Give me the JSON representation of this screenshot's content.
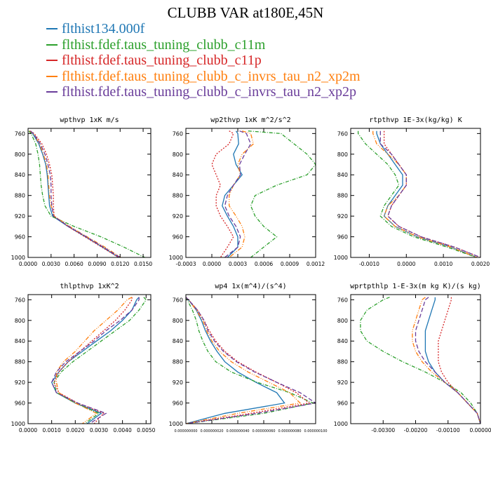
{
  "title": "CLUBB VAR at180E,45N",
  "colors": {
    "s1": "#1f77b4",
    "s2": "#2ca02c",
    "s3": "#d62728",
    "s4": "#ff7f0e",
    "s5": "#6a3d9a"
  },
  "legend": [
    {
      "name": "flthist134.000f",
      "color": "#1f77b4"
    },
    {
      "name": "flthist.fdef.taus_tuning_clubb_c11m",
      "color": "#2ca02c"
    },
    {
      "name": "flthist.fdef.taus_tuning_clubb_c11p",
      "color": "#d62728"
    },
    {
      "name": "flthist.fdef.taus_tuning_clubb_c_invrs_tau_n2_xp2m",
      "color": "#ff7f0e"
    },
    {
      "name": "flthist.fdef.taus_tuning_clubb_c_invrs_tau_n2_xp2p",
      "color": "#6a3d9a"
    }
  ],
  "chart_data": [
    {
      "type": "line",
      "title": "wpthvp  1xK m/s",
      "xlim": [
        0,
        0.016
      ],
      "ylim": [
        1000,
        750
      ],
      "xticks": [
        0.0,
        0.003,
        0.006,
        0.009,
        0.012,
        0.015
      ],
      "xtick_labels": [
        "0.0000",
        "0.0030",
        "0.0060",
        "0.0090",
        "0.0120",
        "0.0150"
      ],
      "yticks": [
        760,
        800,
        840,
        880,
        920,
        960,
        1000
      ],
      "y": [
        755,
        760,
        780,
        800,
        820,
        840,
        860,
        880,
        900,
        920,
        940,
        960,
        980,
        1000
      ],
      "series": [
        {
          "name": "flthist134.000f",
          "values": [
            0.0002,
            0.0006,
            0.0014,
            0.0019,
            0.0023,
            0.0025,
            0.0026,
            0.0027,
            0.0028,
            0.0032,
            0.0052,
            0.0075,
            0.0097,
            0.0118
          ]
        },
        {
          "name": "flthist.fdef.taus_tuning_clubb_c11m",
          "values": [
            0.0001,
            0.0004,
            0.001,
            0.0013,
            0.0015,
            0.0016,
            0.0017,
            0.0019,
            0.0022,
            0.003,
            0.006,
            0.0095,
            0.0125,
            0.0152
          ]
        },
        {
          "name": "flthist.fdef.taus_tuning_clubb_c11p",
          "values": [
            0.0003,
            0.0008,
            0.0018,
            0.0024,
            0.0028,
            0.0031,
            0.0032,
            0.0033,
            0.0033,
            0.0034,
            0.0052,
            0.0074,
            0.0096,
            0.0118
          ]
        },
        {
          "name": "flthist.fdef.taus_tuning_clubb_c_invrs_tau_n2_xp2m",
          "values": [
            0.0002,
            0.0007,
            0.0015,
            0.002,
            0.0024,
            0.0026,
            0.0027,
            0.0028,
            0.003,
            0.0034,
            0.0054,
            0.0077,
            0.01,
            0.0121
          ]
        },
        {
          "name": "flthist.fdef.taus_tuning_clubb_c_invrs_tau_n2_xp2p",
          "values": [
            0.0003,
            0.0007,
            0.0016,
            0.0022,
            0.0026,
            0.0029,
            0.003,
            0.003,
            0.0031,
            0.0033,
            0.0053,
            0.0076,
            0.0098,
            0.012
          ]
        }
      ]
    },
    {
      "type": "line",
      "title": "wp2thvp  1xK m^2/s^2",
      "xlim": [
        -0.0003,
        0.0012
      ],
      "ylim": [
        1000,
        750
      ],
      "xticks": [
        -0.0003,
        0.0,
        0.0003,
        0.0006,
        0.0009,
        0.0012
      ],
      "xtick_labels": [
        "-0.0003",
        "0.0000",
        "0.0003",
        "0.0006",
        "0.0009",
        "0.0012"
      ],
      "yticks": [
        760,
        800,
        840,
        880,
        920,
        960,
        1000
      ],
      "y": [
        755,
        760,
        780,
        800,
        820,
        840,
        860,
        880,
        900,
        920,
        940,
        960,
        980,
        1000
      ],
      "series": [
        {
          "name": "flthist134.000f",
          "values": [
            0.00028,
            0.0003,
            0.00031,
            0.00025,
            0.00028,
            0.00035,
            0.00025,
            0.00015,
            0.00012,
            0.00018,
            0.00025,
            0.0003,
            0.0003,
            0.00018
          ]
        },
        {
          "name": "flthist.fdef.taus_tuning_clubb_c11m",
          "values": [
            0.00042,
            0.0008,
            0.00095,
            0.0011,
            0.0012,
            0.0011,
            0.00075,
            0.0005,
            0.00045,
            0.0005,
            0.0006,
            0.00075,
            0.0006,
            0.00045
          ]
        },
        {
          "name": "flthist.fdef.taus_tuning_clubb_c11p",
          "values": [
            0.0002,
            0.00025,
            0.0002,
            5e-05,
            0.0,
            5e-05,
            0.0001,
            5e-05,
            5e-05,
            0.0001,
            0.00018,
            0.00025,
            0.00018,
            0.0001
          ]
        },
        {
          "name": "flthist.fdef.taus_tuning_clubb_c_invrs_tau_n2_xp2m",
          "values": [
            0.00035,
            0.00045,
            0.00048,
            0.00035,
            0.0003,
            0.00033,
            0.00025,
            0.0002,
            0.0002,
            0.00028,
            0.00035,
            0.00038,
            0.00035,
            0.0002
          ]
        },
        {
          "name": "flthist.fdef.taus_tuning_clubb_c_invrs_tau_n2_xp2p",
          "values": [
            0.00032,
            0.0004,
            0.00045,
            0.00038,
            0.00032,
            0.00033,
            0.00025,
            0.00018,
            0.00015,
            0.0002,
            0.00028,
            0.00033,
            0.0003,
            0.00015
          ]
        }
      ]
    },
    {
      "type": "line",
      "title": "rtpthvp  1E-3x(kg/kg) K",
      "xlim": [
        -0.0015,
        0.002
      ],
      "ylim": [
        1000,
        750
      ],
      "xticks": [
        -0.001,
        0.0,
        0.001,
        0.002
      ],
      "xtick_labels": [
        "-0.0010",
        "0.0000",
        "0.0010",
        "0.0020"
      ],
      "yticks": [
        760,
        800,
        840,
        880,
        920,
        960,
        1000
      ],
      "y": [
        755,
        760,
        780,
        800,
        820,
        840,
        860,
        880,
        900,
        920,
        940,
        960,
        980,
        1000
      ],
      "series": [
        {
          "name": "flthist134.000f",
          "values": [
            -0.0008,
            -0.0008,
            -0.0007,
            -0.0005,
            -0.0003,
            -0.0001,
            -0.0001,
            -0.0003,
            -0.0005,
            -0.0006,
            -0.0003,
            0.0003,
            0.0012,
            0.0019
          ]
        },
        {
          "name": "flthist.fdef.taus_tuning_clubb_c11m",
          "values": [
            -0.0013,
            -0.0013,
            -0.0011,
            -0.0008,
            -0.0005,
            -0.0003,
            -0.0002,
            -0.0004,
            -0.0006,
            -0.0007,
            -0.0004,
            0.0002,
            0.0011,
            0.0019
          ]
        },
        {
          "name": "flthist.fdef.taus_tuning_clubb_c11p",
          "values": [
            -0.0006,
            -0.0006,
            -0.0006,
            -0.0004,
            -0.0002,
            0.0,
            0.0,
            -0.0002,
            -0.0004,
            -0.0005,
            -0.0002,
            0.0004,
            0.0013,
            0.002
          ]
        },
        {
          "name": "flthist.fdef.taus_tuning_clubb_c_invrs_tau_n2_xp2m",
          "values": [
            -0.0009,
            -0.0009,
            -0.0008,
            -0.0005,
            -0.0002,
            0.0,
            0.0,
            -0.0002,
            -0.0005,
            -0.0006,
            -0.0003,
            0.0003,
            0.0012,
            0.0019
          ]
        },
        {
          "name": "flthist.fdef.taus_tuning_clubb_c_invrs_tau_n2_xp2p",
          "values": [
            -0.0007,
            -0.0007,
            -0.0007,
            -0.0004,
            -0.0002,
            0.0,
            0.0,
            -0.0002,
            -0.0004,
            -0.0005,
            -0.0002,
            0.0004,
            0.0013,
            0.002
          ]
        }
      ]
    },
    {
      "type": "line",
      "title": "thlpthvp  1xK^2",
      "xlim": [
        0,
        0.0052
      ],
      "ylim": [
        1000,
        750
      ],
      "xticks": [
        0.0,
        0.001,
        0.002,
        0.003,
        0.004,
        0.005
      ],
      "xtick_labels": [
        "0.0000",
        "0.0010",
        "0.0020",
        "0.0030",
        "0.0040",
        "0.0050"
      ],
      "yticks": [
        760,
        800,
        840,
        880,
        920,
        960,
        1000
      ],
      "y": [
        755,
        760,
        780,
        800,
        820,
        840,
        860,
        880,
        900,
        920,
        940,
        960,
        980,
        1000
      ],
      "series": [
        {
          "name": "flthist134.000f",
          "values": [
            0.0047,
            0.0046,
            0.0044,
            0.004,
            0.0035,
            0.0029,
            0.0023,
            0.0017,
            0.0013,
            0.001,
            0.0012,
            0.002,
            0.0031,
            0.0025
          ]
        },
        {
          "name": "flthist.fdef.taus_tuning_clubb_c11m",
          "values": [
            0.0049,
            0.005,
            0.0047,
            0.0043,
            0.0037,
            0.0031,
            0.0025,
            0.0019,
            0.0014,
            0.0011,
            0.0012,
            0.002,
            0.003,
            0.0024
          ]
        },
        {
          "name": "flthist.fdef.taus_tuning_clubb_c11p",
          "values": [
            0.0044,
            0.0044,
            0.0041,
            0.0037,
            0.0032,
            0.0027,
            0.0022,
            0.0017,
            0.0013,
            0.0011,
            0.0013,
            0.0021,
            0.0032,
            0.0028
          ]
        },
        {
          "name": "flthist.fdef.taus_tuning_clubb_c_invrs_tau_n2_xp2m",
          "values": [
            0.0044,
            0.0042,
            0.0038,
            0.0033,
            0.0028,
            0.0024,
            0.002,
            0.0015,
            0.0012,
            0.0012,
            0.0013,
            0.002,
            0.0029,
            0.0023
          ]
        },
        {
          "name": "flthist.fdef.taus_tuning_clubb_c_invrs_tau_n2_xp2p",
          "values": [
            0.0047,
            0.0047,
            0.0044,
            0.0039,
            0.0033,
            0.0028,
            0.0022,
            0.0016,
            0.0012,
            0.001,
            0.0012,
            0.0021,
            0.0033,
            0.0026
          ]
        }
      ]
    },
    {
      "type": "line",
      "title": "wp4  1x(m^4)/(s^4)",
      "xlim": [
        0,
        1e-07
      ],
      "ylim": [
        1000,
        750
      ],
      "xticks": [
        0.0,
        2e-08,
        4e-08,
        6e-08,
        8e-08,
        1e-07
      ],
      "xtick_labels": [
        "0.000000000",
        "0.000000020",
        "0.000000040",
        "0.000000060",
        "0.000000080",
        "0.000000100"
      ],
      "yticks": [
        760,
        800,
        840,
        880,
        920,
        960,
        1000
      ],
      "y": [
        755,
        760,
        780,
        800,
        820,
        840,
        860,
        880,
        900,
        920,
        940,
        960,
        980,
        1000
      ],
      "series": [
        {
          "name": "flthist134.000f",
          "values": [
            0.0,
            2e-09,
            8e-09,
            1.2e-08,
            1.5e-08,
            1.9e-08,
            2.4e-08,
            3e-08,
            4e-08,
            5.4e-08,
            7e-08,
            7.6e-08,
            3e-08,
            0.0
          ]
        },
        {
          "name": "flthist.fdef.taus_tuning_clubb_c11m",
          "values": [
            0.0,
            1e-09,
            5e-09,
            8e-09,
            1e-08,
            1.3e-08,
            1.7e-08,
            2.3e-08,
            3.5e-08,
            5.5e-08,
            8e-08,
            9.8e-08,
            6e-08,
            0.0
          ]
        },
        {
          "name": "flthist.fdef.taus_tuning_clubb_c11p",
          "values": [
            0.0,
            2e-09,
            9e-09,
            1.4e-08,
            1.8e-08,
            2.3e-08,
            3e-08,
            4e-08,
            5.4e-08,
            7e-08,
            8.5e-08,
            9.5e-08,
            5e-08,
            0.0
          ]
        },
        {
          "name": "flthist.fdef.taus_tuning_clubb_c_invrs_tau_n2_xp2m",
          "values": [
            0.0,
            2e-09,
            8e-09,
            1.3e-08,
            1.6e-08,
            2e-08,
            2.6e-08,
            3.5e-08,
            4.8e-08,
            6.4e-08,
            8e-08,
            8.8e-08,
            4e-08,
            0.0
          ]
        },
        {
          "name": "flthist.fdef.taus_tuning_clubb_c_invrs_tau_n2_xp2p",
          "values": [
            0.0,
            2e-09,
            9e-09,
            1.4e-08,
            1.7e-08,
            2.2e-08,
            2.9e-08,
            3.9e-08,
            5.3e-08,
            7e-08,
            8.8e-08,
            1e-07,
            5.5e-08,
            0.0
          ]
        }
      ]
    },
    {
      "type": "line",
      "title": "wprtpthlp  1-E-3x(m kg K)/(s kg)",
      "xlim": [
        -0.004,
        0.0
      ],
      "ylim": [
        1000,
        750
      ],
      "xticks": [
        -0.003,
        -0.002,
        -0.001,
        0.0
      ],
      "xtick_labels": [
        "-0.00300",
        "-0.00200",
        "-0.00100",
        "0.00000"
      ],
      "yticks": [
        760,
        800,
        840,
        880,
        920,
        960,
        1000
      ],
      "y": [
        755,
        760,
        780,
        800,
        820,
        840,
        860,
        880,
        900,
        920,
        940,
        960,
        980,
        1000
      ],
      "series": [
        {
          "name": "flthist134.000f",
          "values": [
            -0.0014,
            -0.0014,
            -0.0015,
            -0.0016,
            -0.0017,
            -0.0017,
            -0.0017,
            -0.0016,
            -0.0014,
            -0.0011,
            -0.0007,
            -0.0004,
            -0.0001,
            0.0
          ]
        },
        {
          "name": "flthist.fdef.taus_tuning_clubb_c11m",
          "values": [
            -0.0028,
            -0.003,
            -0.0035,
            -0.0037,
            -0.0037,
            -0.0035,
            -0.003,
            -0.0024,
            -0.0017,
            -0.0011,
            -0.0006,
            -0.0003,
            -0.0001,
            0.0
          ]
        },
        {
          "name": "flthist.fdef.taus_tuning_clubb_c11p",
          "values": [
            -0.0009,
            -0.0009,
            -0.001,
            -0.0011,
            -0.0012,
            -0.0013,
            -0.0013,
            -0.0013,
            -0.0012,
            -0.001,
            -0.0007,
            -0.0004,
            -0.0001,
            0.0
          ]
        },
        {
          "name": "flthist.fdef.taus_tuning_clubb_c_invrs_tau_n2_xp2m",
          "values": [
            -0.0017,
            -0.0018,
            -0.0019,
            -0.002,
            -0.0021,
            -0.0021,
            -0.002,
            -0.0018,
            -0.0015,
            -0.0011,
            -0.0007,
            -0.0004,
            -0.0001,
            0.0
          ]
        },
        {
          "name": "flthist.fdef.taus_tuning_clubb_c_invrs_tau_n2_xp2p",
          "values": [
            -0.0016,
            -0.0017,
            -0.0018,
            -0.0019,
            -0.002,
            -0.002,
            -0.0019,
            -0.0017,
            -0.0014,
            -0.0011,
            -0.0007,
            -0.0004,
            -0.0001,
            0.0
          ]
        }
      ]
    }
  ]
}
